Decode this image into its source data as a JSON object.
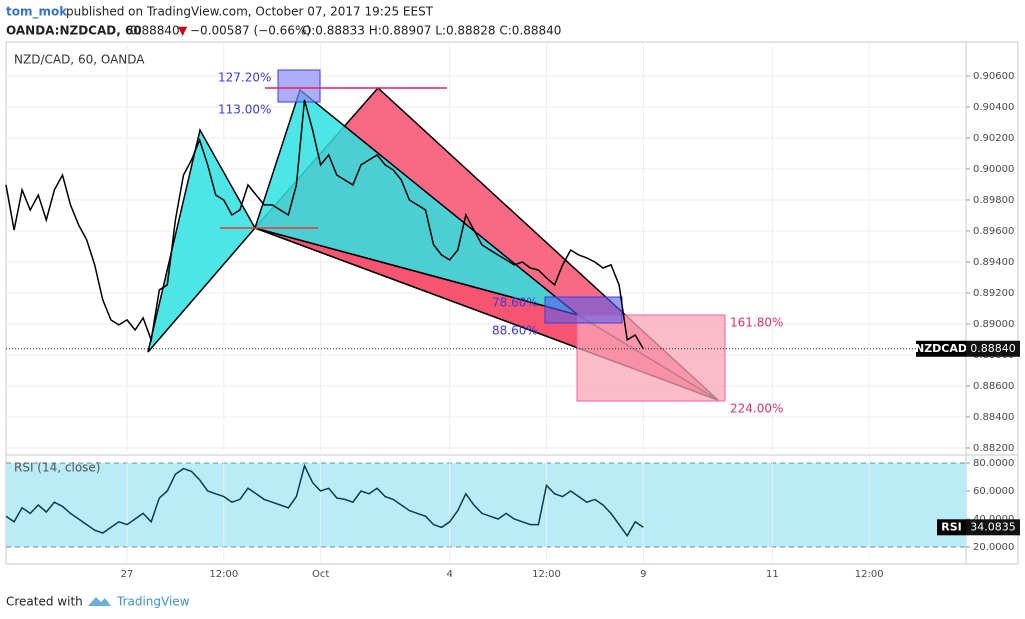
{
  "header": {
    "author": "tom_mok",
    "published": "published on TradingView.com, October 07, 2017 19:25 EEST",
    "symbol": "OANDA:NZDCAD, 60",
    "last": "0.88840",
    "arrow": "▼",
    "change": "−0.00587 (−0.66%)",
    "ohlc": "O:0.88833 H:0.88907 L:0.88828 C:0.88840"
  },
  "chart_data": [
    {
      "type": "line",
      "title": "NZD/CAD, 60, OANDA",
      "x": [
        -15,
        -14,
        -13,
        -12,
        -11,
        -10,
        -9,
        -8,
        -7,
        -6,
        -5,
        -4,
        -3,
        -2,
        -1,
        0,
        1,
        2,
        3,
        4,
        5,
        6,
        7,
        8,
        9,
        10,
        11,
        12,
        13,
        14,
        15,
        16,
        17,
        18,
        19,
        20,
        21,
        22,
        23,
        24,
        25,
        26,
        27,
        28,
        29,
        30,
        31,
        32,
        33,
        34,
        35,
        36,
        37,
        38,
        39,
        40,
        41,
        42,
        43,
        44,
        45,
        46,
        47,
        48,
        49,
        50,
        51,
        52,
        53,
        54,
        55,
        56,
        57,
        58,
        59,
        60,
        61,
        62,
        63,
        64
      ],
      "series": [
        {
          "name": "NZDCAD",
          "color": "#000000",
          "value_label": "0.88840",
          "values": [
            0.89897,
            0.89606,
            0.89865,
            0.89735,
            0.89832,
            0.89671,
            0.89865,
            0.89961,
            0.89768,
            0.89639,
            0.89542,
            0.89381,
            0.89155,
            0.89026,
            0.88994,
            0.89026,
            0.88961,
            0.89039,
            0.88897,
            0.89219,
            0.89252,
            0.89671,
            0.89961,
            0.90058,
            0.90187,
            0.90026,
            0.89832,
            0.898,
            0.89703,
            0.89735,
            0.89897,
            0.89832,
            0.89768,
            0.89768,
            0.89735,
            0.89703,
            0.89897,
            0.90445,
            0.90252,
            0.90026,
            0.9009,
            0.89961,
            0.89929,
            0.89897,
            0.90026,
            0.90058,
            0.9009,
            0.90026,
            0.89994,
            0.89929,
            0.898,
            0.89768,
            0.89735,
            0.8951,
            0.89445,
            0.89413,
            0.89477,
            0.89703,
            0.89606,
            0.8951,
            0.89477,
            0.89445,
            0.89413,
            0.89381,
            0.894,
            0.89361,
            0.89348,
            0.89297,
            0.89252,
            0.89381,
            0.89477,
            0.89445,
            0.89426,
            0.894,
            0.89361,
            0.89381,
            0.89252,
            0.88897,
            0.88929,
            0.8884
          ]
        }
      ],
      "annotations": [
        "127.20%",
        "113.00%",
        "78.60%",
        "88.60%",
        "161.80%",
        "224.00%"
      ],
      "xlim": [
        -15,
        104
      ],
      "ylim": [
        0.88174,
        0.90819
      ],
      "yticks": [
        {
          "value": 0.882,
          "label": "0.88200"
        },
        {
          "value": 0.884,
          "label": "0.88400"
        },
        {
          "value": 0.886,
          "label": "0.88600"
        },
        {
          "value": 0.888,
          "label": "0.88800"
        },
        {
          "value": 0.89,
          "label": "0.89000"
        },
        {
          "value": 0.892,
          "label": "0.89200"
        },
        {
          "value": 0.894,
          "label": "0.89400"
        },
        {
          "value": 0.896,
          "label": "0.89600"
        },
        {
          "value": 0.898,
          "label": "0.89800"
        },
        {
          "value": 0.9,
          "label": "0.90000"
        },
        {
          "value": 0.902,
          "label": "0.90200"
        },
        {
          "value": 0.904,
          "label": "0.90400"
        },
        {
          "value": 0.906,
          "label": "0.90600"
        }
      ],
      "grid": true
    },
    {
      "type": "line",
      "title": "RSI (14, close)",
      "x": [
        -15,
        -14,
        -13,
        -12,
        -11,
        -10,
        -9,
        -8,
        -7,
        -6,
        -5,
        -4,
        -3,
        -2,
        -1,
        0,
        1,
        2,
        3,
        4,
        5,
        6,
        7,
        8,
        9,
        10,
        11,
        12,
        13,
        14,
        15,
        16,
        17,
        18,
        19,
        20,
        21,
        22,
        23,
        24,
        25,
        26,
        27,
        28,
        29,
        30,
        31,
        32,
        33,
        34,
        35,
        36,
        37,
        38,
        39,
        40,
        41,
        42,
        43,
        44,
        45,
        46,
        47,
        48,
        49,
        50,
        51,
        52,
        53,
        54,
        55,
        56,
        57,
        58,
        59,
        60,
        61,
        62,
        63,
        64
      ],
      "series": [
        {
          "name": "RSI",
          "color": "#0b3d4a",
          "value_label": "34.0835",
          "values": [
            42,
            38,
            48,
            44,
            50,
            45,
            52,
            49,
            44,
            40,
            36,
            32,
            30,
            34,
            38,
            36,
            40,
            44,
            38,
            55,
            60,
            72,
            76,
            74,
            68,
            60,
            58,
            56,
            52,
            54,
            62,
            58,
            54,
            52,
            50,
            48,
            56,
            78,
            66,
            60,
            62,
            55,
            54,
            52,
            60,
            58,
            62,
            56,
            54,
            50,
            46,
            44,
            42,
            36,
            34,
            38,
            46,
            58,
            50,
            44,
            42,
            40,
            44,
            40,
            38,
            36,
            36,
            64,
            58,
            56,
            60,
            56,
            52,
            54,
            50,
            44,
            36,
            28,
            38,
            34.0835
          ]
        }
      ],
      "band": [
        20,
        80
      ],
      "band_color": "#b9ecf7",
      "xlim": [
        -15,
        104
      ],
      "ylim": [
        9.3,
        83.6
      ],
      "yticks": [
        {
          "value": 20,
          "label": "20.0000"
        },
        {
          "value": 40,
          "label": "40.0000"
        },
        {
          "value": 60,
          "label": "60.0000"
        },
        {
          "value": 80,
          "label": "80.0000"
        }
      ],
      "xticks": [
        {
          "value": 0,
          "label": "27"
        },
        {
          "value": 12,
          "label": "12:00"
        },
        {
          "value": 24,
          "label": "Oct"
        },
        {
          "value": 40,
          "label": "4"
        },
        {
          "value": 52,
          "label": "12:00"
        },
        {
          "value": 64,
          "label": "9"
        },
        {
          "value": 80,
          "label": "11"
        },
        {
          "value": 92,
          "label": "12:00"
        }
      ],
      "grid": true
    }
  ],
  "footer": {
    "created": "Created with",
    "brand": "TradingView"
  }
}
